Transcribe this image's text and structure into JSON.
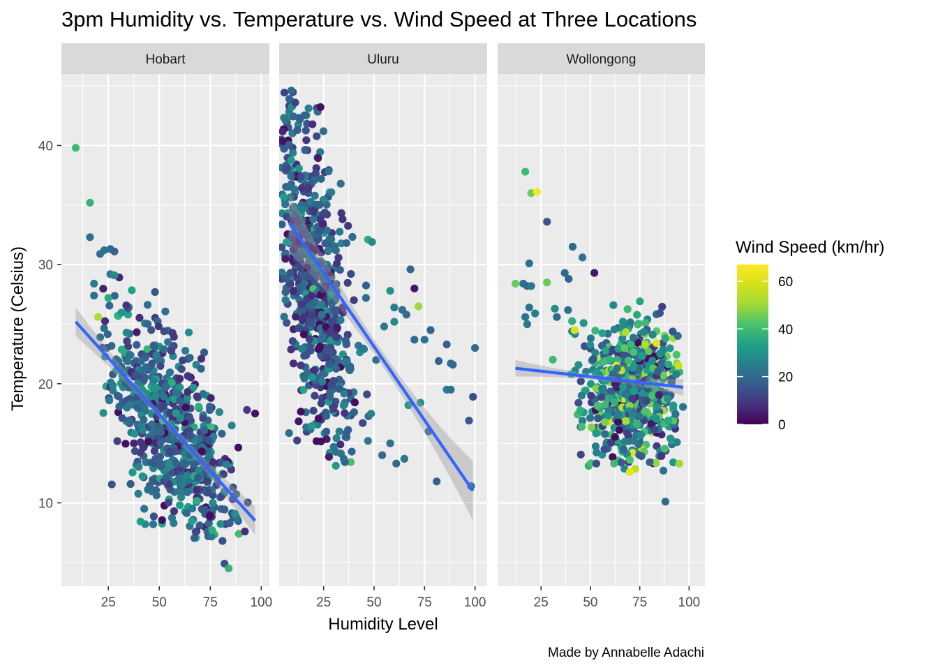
{
  "chart_data": {
    "type": "scatter",
    "title": "3pm Humidity vs. Temperature vs. Wind Speed at Three Locations",
    "xlabel": "Humidity Level",
    "ylabel": "Temperature (Celsius)",
    "caption": "Made by Annabelle Adachi",
    "legend_title": "Wind Speed (km/hr)",
    "legend_position": "right",
    "color_scale": {
      "name": "viridis",
      "limits": [
        0,
        67
      ],
      "ticks": [
        0,
        20,
        40,
        60
      ]
    },
    "colors": {
      "panel_bg": "#ebebeb",
      "strip_bg": "#d9d9d9",
      "grid": "#ffffff",
      "smooth_line": "#3366ff",
      "smooth_band": "#999999"
    },
    "x_ticks": [
      25,
      50,
      75,
      100
    ],
    "y_ticks": [
      10,
      20,
      30,
      40
    ],
    "ylim": [
      3,
      46
    ],
    "panels": [
      {
        "name": "Hobart",
        "xlim": [
          2,
          104
        ],
        "smooth": {
          "x0": 9,
          "y0": 25.2,
          "x1": 97,
          "y1": 8.5,
          "se_ends": 1.2,
          "se_mid": 0.35
        },
        "cloud": {
          "n": 700,
          "cx": 56,
          "cy": 16.3,
          "sx": 15,
          "sy": 3.6,
          "slope": -0.19,
          "xmin": 22,
          "xmax": 99,
          "ymin": 7,
          "ymax": 31,
          "wind_mean": 19,
          "wind_sd": 9
        },
        "outliers": [
          {
            "x": 9,
            "y": 39.8,
            "w": 40
          },
          {
            "x": 16,
            "y": 35.2,
            "w": 38
          },
          {
            "x": 16,
            "y": 32.3,
            "w": 22
          },
          {
            "x": 18,
            "y": 28.4,
            "w": 25
          },
          {
            "x": 18,
            "y": 27.4,
            "w": 22
          },
          {
            "x": 20,
            "y": 25.6,
            "w": 52
          },
          {
            "x": 21,
            "y": 30.9,
            "w": 20
          },
          {
            "x": 23,
            "y": 31.2,
            "w": 22
          },
          {
            "x": 26,
            "y": 31.3,
            "w": 20
          },
          {
            "x": 28,
            "y": 31.1,
            "w": 18
          },
          {
            "x": 26,
            "y": 29.2,
            "w": 24
          },
          {
            "x": 28,
            "y": 29.1,
            "w": 28
          },
          {
            "x": 25,
            "y": 27.2,
            "w": 36
          },
          {
            "x": 21,
            "y": 23.9,
            "w": 22
          },
          {
            "x": 82,
            "y": 4.9,
            "w": 15
          },
          {
            "x": 84,
            "y": 4.5,
            "w": 38
          },
          {
            "x": 97,
            "y": 17.5,
            "w": 3
          },
          {
            "x": 93,
            "y": 17.8,
            "w": 10
          },
          {
            "x": 89,
            "y": 7.4,
            "w": 40
          },
          {
            "x": 92,
            "y": 7.6,
            "w": 8
          },
          {
            "x": 81,
            "y": 6.8,
            "w": 14
          },
          {
            "x": 47,
            "y": 8.2,
            "w": 22
          }
        ]
      },
      {
        "name": "Uluru",
        "xlim": [
          3,
          106
        ],
        "smooth": {
          "x0": 8,
          "y0": 33.5,
          "x1": 99,
          "y1": 11,
          "se_ends": 2.5,
          "se_mid": 0.6
        },
        "cloud": {
          "n": 650,
          "cx": 20,
          "cy": 28.5,
          "sx": 10,
          "sy": 6.5,
          "slope": -0.45,
          "xmin": 4,
          "xmax": 60,
          "ymin": 13,
          "ymax": 44.5,
          "wind_mean": 16,
          "wind_sd": 8
        },
        "outliers": [
          {
            "x": 9,
            "y": 44.6,
            "w": 20
          },
          {
            "x": 8,
            "y": 43.9,
            "w": 18
          },
          {
            "x": 11,
            "y": 43.6,
            "w": 12
          },
          {
            "x": 47,
            "y": 32.1,
            "w": 36
          },
          {
            "x": 49,
            "y": 31.9,
            "w": 28
          },
          {
            "x": 68,
            "y": 29.6,
            "w": 20
          },
          {
            "x": 70,
            "y": 28.0,
            "w": 4
          },
          {
            "x": 72,
            "y": 26.5,
            "w": 50
          },
          {
            "x": 58,
            "y": 27.8,
            "w": 30
          },
          {
            "x": 46,
            "y": 27.2,
            "w": 20
          },
          {
            "x": 60,
            "y": 26.4,
            "w": 25
          },
          {
            "x": 64,
            "y": 26.2,
            "w": 22
          },
          {
            "x": 66,
            "y": 25.8,
            "w": 20
          },
          {
            "x": 55,
            "y": 24.8,
            "w": 24
          },
          {
            "x": 60,
            "y": 25.2,
            "w": 28
          },
          {
            "x": 78,
            "y": 24.5,
            "w": 18
          },
          {
            "x": 70,
            "y": 23.7,
            "w": 20
          },
          {
            "x": 75,
            "y": 23.7,
            "w": 22
          },
          {
            "x": 86,
            "y": 23.3,
            "w": 18
          },
          {
            "x": 100,
            "y": 23.0,
            "w": 20
          },
          {
            "x": 45,
            "y": 22.9,
            "w": 24
          },
          {
            "x": 51,
            "y": 22.0,
            "w": 22
          },
          {
            "x": 82,
            "y": 21.9,
            "w": 18
          },
          {
            "x": 88,
            "y": 21.7,
            "w": 22
          },
          {
            "x": 89,
            "y": 21.6,
            "w": 20
          },
          {
            "x": 86,
            "y": 19.5,
            "w": 25
          },
          {
            "x": 88,
            "y": 19.5,
            "w": 22
          },
          {
            "x": 99,
            "y": 18.9,
            "w": 14
          },
          {
            "x": 73,
            "y": 18.4,
            "w": 30
          },
          {
            "x": 67,
            "y": 18.2,
            "w": 30
          },
          {
            "x": 97,
            "y": 16.9,
            "w": 16
          },
          {
            "x": 77,
            "y": 16.0,
            "w": 20
          },
          {
            "x": 47,
            "y": 15.2,
            "w": 24
          },
          {
            "x": 58,
            "y": 15.0,
            "w": 22
          },
          {
            "x": 54,
            "y": 14.0,
            "w": 20
          },
          {
            "x": 61,
            "y": 13.3,
            "w": 20
          },
          {
            "x": 65,
            "y": 13.7,
            "w": 22
          },
          {
            "x": 81,
            "y": 11.8,
            "w": 18
          },
          {
            "x": 98,
            "y": 11.4,
            "w": 20
          },
          {
            "x": 30,
            "y": 14.7,
            "w": 22
          },
          {
            "x": 35,
            "y": 13.7,
            "w": 20
          }
        ]
      },
      {
        "name": "Wollongong",
        "xlim": [
          3,
          108
        ],
        "smooth": {
          "x0": 12,
          "y0": 21.3,
          "x1": 97,
          "y1": 19.7,
          "se_ends": 0.7,
          "se_mid": 0.25
        },
        "cloud": {
          "n": 600,
          "cx": 72,
          "cy": 19.3,
          "sx": 14,
          "sy": 3.4,
          "slope": 0.0,
          "xmin": 26,
          "xmax": 97,
          "ymin": 12.5,
          "ymax": 27,
          "wind_mean": 27,
          "wind_sd": 13
        },
        "outliers": [
          {
            "x": 17,
            "y": 37.8,
            "w": 40
          },
          {
            "x": 20,
            "y": 36.0,
            "w": 45
          },
          {
            "x": 23,
            "y": 36.1,
            "w": 67
          },
          {
            "x": 28,
            "y": 33.6,
            "w": 16
          },
          {
            "x": 19,
            "y": 30.1,
            "w": 22
          },
          {
            "x": 41,
            "y": 31.5,
            "w": 20
          },
          {
            "x": 46,
            "y": 30.6,
            "w": 22
          },
          {
            "x": 52,
            "y": 29.3,
            "w": 4
          },
          {
            "x": 12,
            "y": 28.4,
            "w": 45
          },
          {
            "x": 16,
            "y": 28.4,
            "w": 22
          },
          {
            "x": 18,
            "y": 28.2,
            "w": 20
          },
          {
            "x": 20,
            "y": 28.2,
            "w": 24
          },
          {
            "x": 28,
            "y": 28.5,
            "w": 45
          },
          {
            "x": 37,
            "y": 29.3,
            "w": 20
          },
          {
            "x": 39,
            "y": 28.8,
            "w": 18
          },
          {
            "x": 19,
            "y": 26.4,
            "w": 22
          },
          {
            "x": 22,
            "y": 25.9,
            "w": 25
          },
          {
            "x": 17,
            "y": 25.6,
            "w": 22
          },
          {
            "x": 32,
            "y": 26.3,
            "w": 28
          },
          {
            "x": 18,
            "y": 25.0,
            "w": 24
          },
          {
            "x": 33,
            "y": 25.6,
            "w": 20
          },
          {
            "x": 42,
            "y": 24.5,
            "w": 60
          },
          {
            "x": 88,
            "y": 10.1,
            "w": 20
          },
          {
            "x": 87,
            "y": 12.7,
            "w": 22
          },
          {
            "x": 62,
            "y": 13.3,
            "w": 40
          },
          {
            "x": 53,
            "y": 13.3,
            "w": 14
          },
          {
            "x": 92,
            "y": 13.4,
            "w": 30
          },
          {
            "x": 95,
            "y": 13.3,
            "w": 50
          },
          {
            "x": 70,
            "y": 13.6,
            "w": 42
          }
        ]
      }
    ]
  }
}
